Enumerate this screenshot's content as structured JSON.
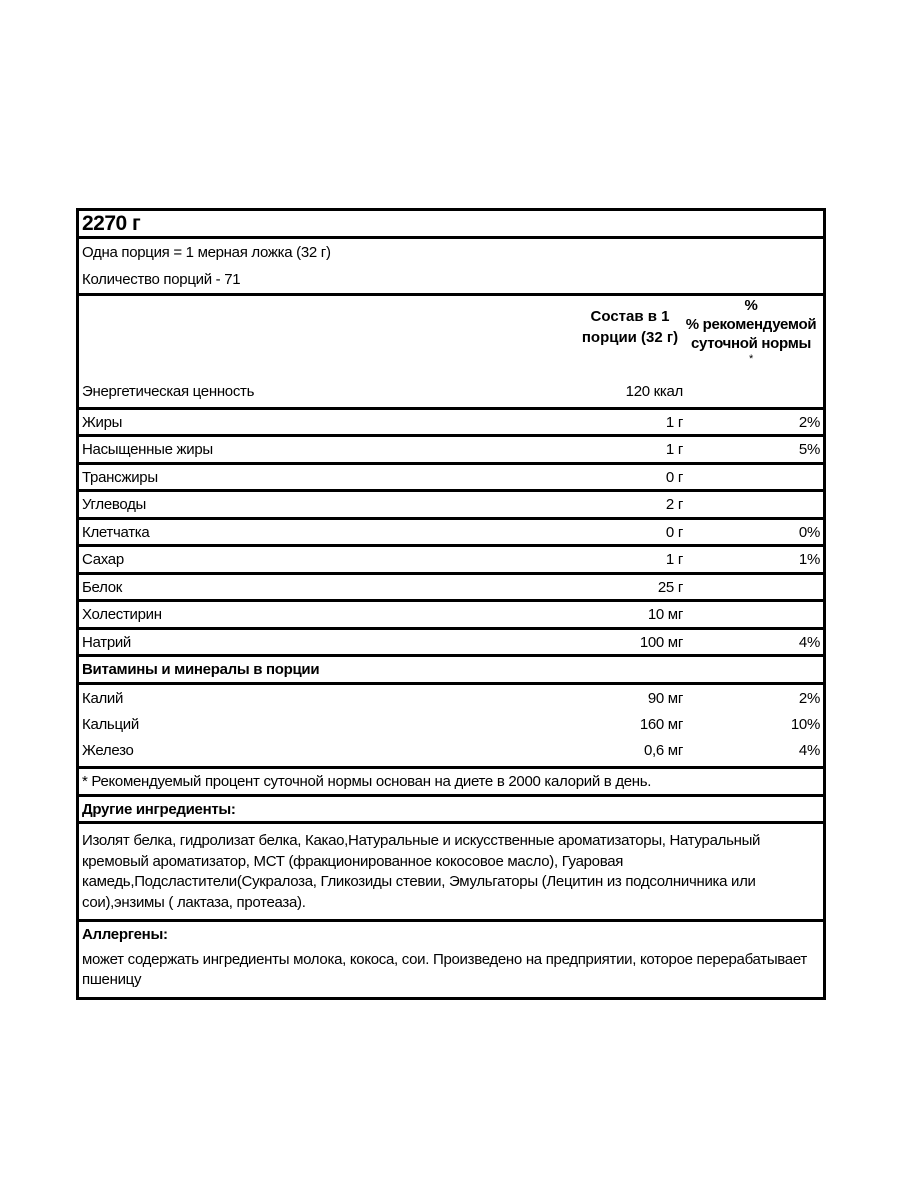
{
  "title": "2270 г",
  "serving": {
    "size": "Одна порция = 1 мерная ложка (32 г)",
    "count": "Количество порций - 71"
  },
  "header": {
    "col_amount": "Состав в 1 порции (32 г)",
    "col_dv": "% рекомендуемой суточной нормы",
    "col_dv_mark": "*"
  },
  "nutrients": [
    {
      "name": "Энергетическая ценность",
      "amount": "120 ккал",
      "dv": ""
    },
    {
      "name": "Жиры",
      "amount": "1 г",
      "dv": "2%"
    },
    {
      "name": "Насыщенные жиры",
      "amount": "1 г",
      "dv": "5%"
    },
    {
      "name": "Трансжиры",
      "amount": "0 г",
      "dv": ""
    },
    {
      "name": "Углеводы",
      "amount": "2 г",
      "dv": ""
    },
    {
      "name": "Клетчатка",
      "amount": "0 г",
      "dv": "0%"
    },
    {
      "name": "Сахар",
      "amount": "1 г",
      "dv": "1%"
    },
    {
      "name": "Белок",
      "amount": "25 г",
      "dv": ""
    },
    {
      "name": "Холестирин",
      "amount": "10 мг",
      "dv": ""
    },
    {
      "name": "Натрий",
      "amount": "100 мг",
      "dv": "4%"
    }
  ],
  "vitamins": {
    "heading": "Витамины и минералы в порции",
    "items": [
      {
        "name": "Калий",
        "amount": "90 мг",
        "dv": "2%"
      },
      {
        "name": "Кальций",
        "amount": "160 мг",
        "dv": "10%"
      },
      {
        "name": "Железо",
        "amount": "0,6 мг",
        "dv": "4%"
      }
    ]
  },
  "footnote": "* Рекомендуемый процент суточной нормы основан на диете в 2000 калорий в день.",
  "ingredients": {
    "heading": "Другие ингредиенты:",
    "text": "Изолят белка, гидролизат белка, Какао,Натуральные и искусственные ароматизаторы, Натуральный кремовый ароматизатор, МСТ  (фракционированное кокосовое масло), Гуаровая камедь,Подсластители(Сукралоза, Гликозиды стевии, Эмульгаторы (Лецитин из подсолничника или сои),энзимы ( лактаза, протеаза)."
  },
  "allergens": {
    "heading": "Аллергены:",
    "text": "может содержать ингредиенты молока, кокоса, сои. Произведено на предприятии, которое перерабатывает пшеницу"
  }
}
